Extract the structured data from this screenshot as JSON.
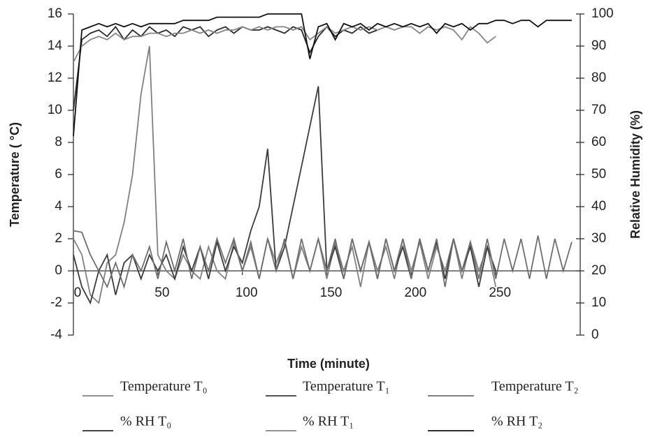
{
  "chart_data": {
    "type": "line",
    "x_label": "Time (minute)",
    "y_label": "Temperature ( °C)",
    "y2_label": "Relative Humidity (%)",
    "xlim": [
      0,
      300
    ],
    "xticks": [
      0,
      50,
      100,
      150,
      200,
      250
    ],
    "ylim": [
      -4,
      16
    ],
    "yticks": [
      -4,
      -2,
      0,
      2,
      4,
      6,
      8,
      10,
      12,
      14,
      16
    ],
    "y2lim": [
      0,
      100
    ],
    "y2ticks": [
      0,
      10,
      20,
      30,
      40,
      50,
      60,
      70,
      80,
      90,
      100
    ],
    "x": [
      0,
      5,
      10,
      15,
      20,
      25,
      30,
      35,
      40,
      45,
      50,
      55,
      60,
      65,
      70,
      75,
      80,
      85,
      90,
      95,
      100,
      105,
      110,
      115,
      120,
      125,
      130,
      135,
      140,
      145,
      150,
      155,
      160,
      165,
      170,
      175,
      180,
      185,
      190,
      195,
      200,
      205,
      210,
      215,
      220,
      225,
      230,
      235,
      240,
      245,
      250,
      255,
      260,
      265,
      270,
      275,
      280,
      285,
      290,
      295
    ],
    "series": [
      {
        "name": "Temperature T₀",
        "color": "#808080",
        "values": [
          2,
          1,
          -1.5,
          -2,
          0.5,
          1,
          3,
          6,
          11,
          14,
          1,
          0,
          -0.5,
          1,
          0,
          -0.5,
          1.5,
          0,
          -0.5,
          1.8,
          0,
          1.5,
          -0.5,
          2,
          0.5,
          1.8,
          -0.5,
          1.5,
          0,
          2,
          -0.5,
          1.8,
          0,
          1.5,
          -1,
          1.8,
          0,
          1.5,
          -0.5,
          2,
          0,
          1.8,
          -0.5,
          1.5,
          0,
          2,
          -0.5,
          1.8,
          0,
          1.5,
          -1,
          null,
          null,
          null,
          null,
          null,
          null,
          null,
          null,
          null
        ]
      },
      {
        "name": "Temperature T₁",
        "color": "#3a3a3a",
        "values": [
          1,
          -1,
          -2,
          0,
          1,
          -1.5,
          0.5,
          1,
          -0.5,
          1,
          0,
          1,
          -0.5,
          1.5,
          0,
          1.5,
          -0.5,
          1.8,
          0,
          1.5,
          0.5,
          2.5,
          4,
          7.6,
          0,
          1.5,
          4,
          6.5,
          9,
          11.5,
          0,
          1.5,
          -0.5,
          2,
          0,
          1.8,
          -0.5,
          2,
          0,
          1.5,
          -0.5,
          2,
          0,
          1.8,
          -0.5,
          2,
          0,
          1.5,
          -1,
          1.5,
          0,
          null,
          null,
          null,
          null,
          null,
          null,
          null,
          null,
          null
        ]
      },
      {
        "name": "Temperature T₂",
        "color": "#6e6e6e",
        "values": [
          2.5,
          2.4,
          1,
          0,
          -1,
          0.5,
          -1,
          1,
          0,
          1.5,
          -0.5,
          1.8,
          0,
          2,
          -0.5,
          1.5,
          0,
          2,
          0.5,
          2,
          0,
          1.8,
          -0.5,
          2,
          0,
          2,
          -0.5,
          2,
          0,
          2,
          0,
          2,
          -0.5,
          2,
          0,
          1.8,
          -0.5,
          2,
          0,
          2,
          -0.5,
          2,
          0,
          2,
          -1,
          2,
          0,
          1.8,
          -0.5,
          2,
          -0.5,
          2,
          0,
          2,
          -0.5,
          2.2,
          -0.5,
          2,
          0,
          1.8
        ]
      },
      {
        "name": "% RH T₀",
        "color": "#2a2a2a",
        "axis": "y2",
        "values": [
          70,
          92,
          94,
          95,
          93,
          96,
          92,
          95,
          93,
          96,
          94,
          95,
          93,
          96,
          95,
          96,
          93,
          95,
          96,
          94,
          96,
          95,
          95,
          96,
          95,
          94,
          96,
          95,
          88,
          93,
          96,
          93,
          95,
          94,
          96,
          94,
          95,
          null,
          null,
          null,
          null,
          null,
          null,
          null,
          null,
          null,
          null,
          null,
          null,
          null,
          null,
          null,
          null,
          null,
          null,
          null,
          null,
          null,
          null,
          null
        ]
      },
      {
        "name": "% RH T₁",
        "color": "#858585",
        "axis": "y2",
        "values": [
          85,
          90,
          92,
          93,
          92,
          94,
          92,
          93,
          93,
          94,
          94,
          93,
          94,
          94,
          95,
          94,
          95,
          94,
          95,
          95,
          96,
          95,
          96,
          95,
          96,
          96,
          95,
          96,
          92,
          94,
          96,
          94,
          95,
          96,
          95,
          96,
          95,
          96,
          95,
          96,
          96,
          94,
          96,
          95,
          96,
          95,
          92,
          96,
          94,
          91,
          93,
          null,
          null,
          null,
          null,
          null,
          null,
          null,
          null,
          null
        ]
      },
      {
        "name": "% RH T₂",
        "color": "#111111",
        "axis": "y2",
        "values": [
          62,
          95,
          96,
          97,
          96,
          97,
          96,
          97,
          96,
          97,
          97,
          97,
          97,
          98,
          98,
          98,
          98,
          99,
          99,
          99,
          99,
          99,
          99,
          100,
          100,
          100,
          100,
          100,
          86,
          96,
          97,
          92,
          97,
          96,
          97,
          95,
          97,
          96,
          97,
          96,
          97,
          96,
          97,
          94,
          97,
          96,
          97,
          95,
          97,
          97,
          98,
          98,
          97,
          98,
          98,
          96,
          98,
          98,
          98,
          98
        ]
      }
    ]
  }
}
